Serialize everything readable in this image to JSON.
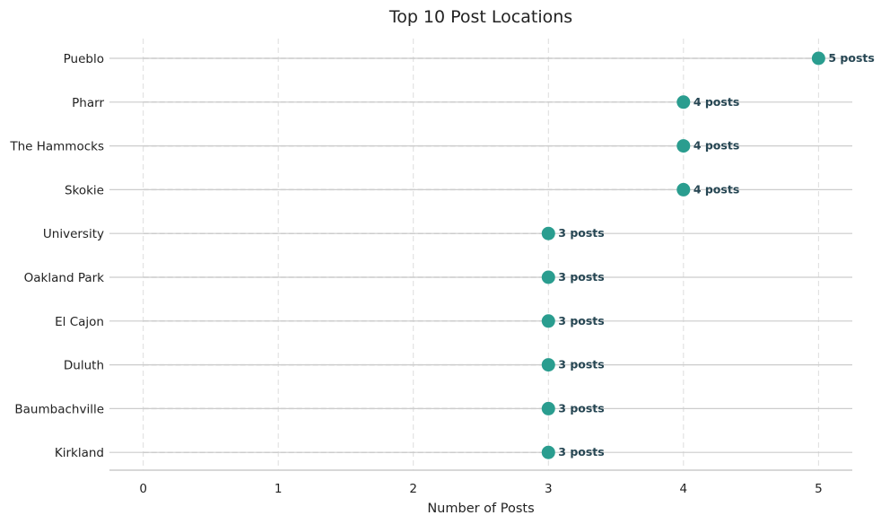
{
  "chart_data": {
    "type": "scatter",
    "subtype": "lollipop",
    "title": "Top 10 Post Locations",
    "xlabel": "Number of Posts",
    "ylabel": "",
    "categories": [
      "Pueblo",
      "Pharr",
      "The Hammocks",
      "Skokie",
      "University",
      "Oakland Park",
      "El Cajon",
      "Duluth",
      "Baumbachville",
      "Kirkland"
    ],
    "values": [
      5,
      4,
      4,
      4,
      3,
      3,
      3,
      3,
      3,
      3
    ],
    "data_labels": [
      "5 posts",
      "4 posts",
      "4 posts",
      "4 posts",
      "3 posts",
      "3 posts",
      "3 posts",
      "3 posts",
      "3 posts",
      "3 posts"
    ],
    "x_ticks": [
      "0",
      "1",
      "2",
      "3",
      "4",
      "5"
    ],
    "xlim": [
      -0.25,
      5.25
    ],
    "grid": "vertical dashed",
    "colors": {
      "marker": "#2a9d8f",
      "label": "#264653",
      "row_line": "#cccccc",
      "grid": "#dddddd",
      "stem": "#cccccc"
    }
  }
}
